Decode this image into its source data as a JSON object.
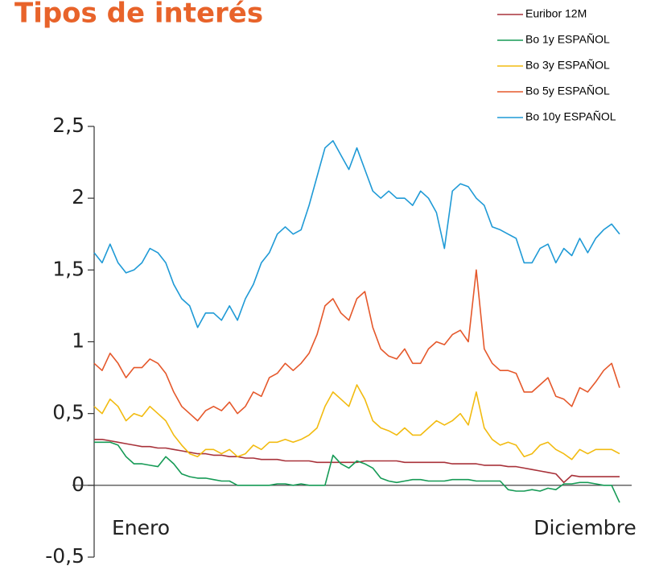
{
  "chart_data": {
    "type": "line",
    "title": "Tipos de interés",
    "xlabels": [
      "Enero",
      "Diciembre"
    ],
    "ylim": [
      -0.5,
      2.5
    ],
    "yticks": [
      {
        "value": -0.5,
        "label": "-0,5"
      },
      0,
      {
        "value": 0.5,
        "label": "0,5"
      },
      1,
      {
        "value": 1.5,
        "label": "1,5"
      },
      2,
      {
        "value": 2.5,
        "label": "2,5"
      }
    ],
    "series": [
      {
        "name": "Euribor 12M",
        "color": "#a8323a",
        "values": [
          0.32,
          0.32,
          0.31,
          0.3,
          0.29,
          0.28,
          0.27,
          0.27,
          0.26,
          0.26,
          0.25,
          0.24,
          0.23,
          0.22,
          0.22,
          0.21,
          0.21,
          0.2,
          0.2,
          0.19,
          0.19,
          0.18,
          0.18,
          0.18,
          0.17,
          0.17,
          0.17,
          0.17,
          0.16,
          0.16,
          0.16,
          0.16,
          0.16,
          0.16,
          0.17,
          0.17,
          0.17,
          0.17,
          0.17,
          0.16,
          0.16,
          0.16,
          0.16,
          0.16,
          0.16,
          0.15,
          0.15,
          0.15,
          0.15,
          0.14,
          0.14,
          0.14,
          0.13,
          0.13,
          0.12,
          0.11,
          0.1,
          0.09,
          0.08,
          0.02,
          0.07,
          0.06,
          0.06,
          0.06,
          0.06,
          0.06,
          0.06
        ]
      },
      {
        "name": "Bo 1y ESPAÑOL",
        "color": "#159a55",
        "values": [
          0.3,
          0.3,
          0.3,
          0.28,
          0.2,
          0.15,
          0.15,
          0.14,
          0.13,
          0.2,
          0.15,
          0.08,
          0.06,
          0.05,
          0.05,
          0.04,
          0.03,
          0.03,
          0.0,
          0.0,
          0.0,
          0.0,
          0.0,
          0.01,
          0.01,
          0.0,
          0.01,
          0.0,
          0.0,
          0.0,
          0.21,
          0.15,
          0.12,
          0.17,
          0.15,
          0.12,
          0.05,
          0.03,
          0.02,
          0.03,
          0.04,
          0.04,
          0.03,
          0.03,
          0.03,
          0.04,
          0.04,
          0.04,
          0.03,
          0.03,
          0.03,
          0.03,
          -0.03,
          -0.04,
          -0.04,
          -0.03,
          -0.04,
          -0.02,
          -0.03,
          0.01,
          0.01,
          0.02,
          0.02,
          0.01,
          0.0,
          0.0,
          -0.12
        ]
      },
      {
        "name": "Bo 3y ESPAÑOL",
        "color": "#f2bb10",
        "values": [
          0.55,
          0.5,
          0.6,
          0.55,
          0.45,
          0.5,
          0.48,
          0.55,
          0.5,
          0.45,
          0.35,
          0.28,
          0.22,
          0.2,
          0.25,
          0.25,
          0.22,
          0.25,
          0.2,
          0.22,
          0.28,
          0.25,
          0.3,
          0.3,
          0.32,
          0.3,
          0.32,
          0.35,
          0.4,
          0.55,
          0.65,
          0.6,
          0.55,
          0.7,
          0.6,
          0.45,
          0.4,
          0.38,
          0.35,
          0.4,
          0.35,
          0.35,
          0.4,
          0.45,
          0.42,
          0.45,
          0.5,
          0.42,
          0.65,
          0.4,
          0.32,
          0.28,
          0.3,
          0.28,
          0.2,
          0.22,
          0.28,
          0.3,
          0.25,
          0.22,
          0.18,
          0.25,
          0.22,
          0.25,
          0.25,
          0.25,
          0.22
        ]
      },
      {
        "name": "Bo 5y ESPAÑOL",
        "color": "#e5582b",
        "values": [
          0.85,
          0.8,
          0.92,
          0.85,
          0.75,
          0.82,
          0.82,
          0.88,
          0.85,
          0.78,
          0.65,
          0.55,
          0.5,
          0.45,
          0.52,
          0.55,
          0.52,
          0.58,
          0.5,
          0.55,
          0.65,
          0.62,
          0.75,
          0.78,
          0.85,
          0.8,
          0.85,
          0.92,
          1.05,
          1.25,
          1.3,
          1.2,
          1.15,
          1.3,
          1.35,
          1.1,
          0.95,
          0.9,
          0.88,
          0.95,
          0.85,
          0.85,
          0.95,
          1.0,
          0.98,
          1.05,
          1.08,
          1.0,
          1.5,
          0.95,
          0.85,
          0.8,
          0.8,
          0.78,
          0.65,
          0.65,
          0.7,
          0.75,
          0.62,
          0.6,
          0.55,
          0.68,
          0.65,
          0.72,
          0.8,
          0.85,
          0.68
        ]
      },
      {
        "name": "Bo 10y ESPAÑOL",
        "color": "#1f9ad6",
        "values": [
          1.62,
          1.55,
          1.68,
          1.55,
          1.48,
          1.5,
          1.55,
          1.65,
          1.62,
          1.55,
          1.4,
          1.3,
          1.25,
          1.1,
          1.2,
          1.2,
          1.15,
          1.25,
          1.15,
          1.3,
          1.4,
          1.55,
          1.62,
          1.75,
          1.8,
          1.75,
          1.78,
          1.95,
          2.15,
          2.35,
          2.4,
          2.3,
          2.2,
          2.35,
          2.2,
          2.05,
          2.0,
          2.05,
          2.0,
          2.0,
          1.95,
          2.05,
          2.0,
          1.9,
          1.65,
          2.05,
          2.1,
          2.08,
          2.0,
          1.95,
          1.8,
          1.78,
          1.75,
          1.72,
          1.55,
          1.55,
          1.65,
          1.68,
          1.55,
          1.65,
          1.6,
          1.72,
          1.62,
          1.72,
          1.78,
          1.82,
          1.75
        ]
      }
    ]
  }
}
